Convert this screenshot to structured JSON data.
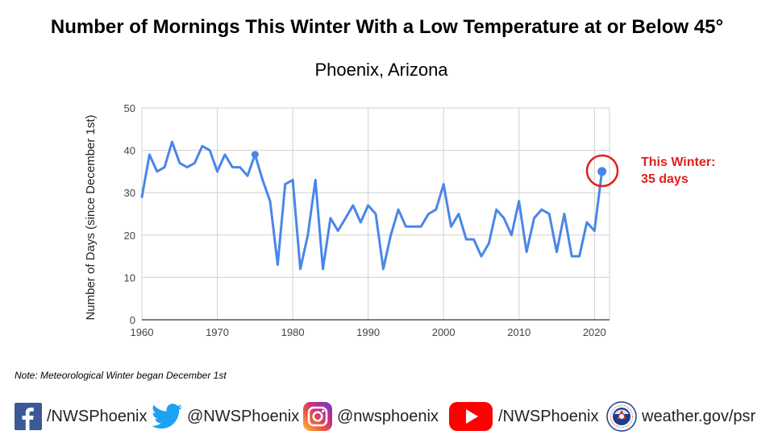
{
  "chart_data": {
    "type": "line",
    "title": "Number of Mornings This Winter With a Low Temperature at or Below 45°",
    "subtitle": "Phoenix, Arizona",
    "ylabel": "Number of Days (since December 1st)",
    "xlabel": "",
    "xlim": [
      1960,
      2022
    ],
    "ylim": [
      0,
      50
    ],
    "x_ticks": [
      "1960",
      "1970",
      "1980",
      "1990",
      "2000",
      "2010",
      "2020"
    ],
    "y_ticks": [
      "0",
      "10",
      "20",
      "30",
      "40",
      "50"
    ],
    "grid": true,
    "x": [
      1960,
      1961,
      1962,
      1963,
      1964,
      1965,
      1966,
      1967,
      1968,
      1969,
      1970,
      1971,
      1972,
      1973,
      1974,
      1975,
      1976,
      1977,
      1978,
      1979,
      1980,
      1981,
      1982,
      1983,
      1984,
      1985,
      1986,
      1987,
      1988,
      1989,
      1990,
      1991,
      1992,
      1993,
      1994,
      1995,
      1996,
      1997,
      1998,
      1999,
      2000,
      2001,
      2002,
      2003,
      2004,
      2005,
      2006,
      2007,
      2008,
      2009,
      2010,
      2011,
      2012,
      2013,
      2014,
      2015,
      2016,
      2017,
      2018,
      2019,
      2020,
      2021
    ],
    "series": [
      {
        "name": "",
        "color": "#4a86e8",
        "values": [
          29,
          39,
          35,
          36,
          42,
          37,
          36,
          37,
          41,
          40,
          35,
          39,
          36,
          36,
          34,
          39,
          33,
          28,
          13,
          32,
          33,
          12,
          20,
          33,
          12,
          24,
          21,
          24,
          27,
          23,
          27,
          25,
          12,
          20,
          26,
          22,
          22,
          22,
          25,
          26,
          32,
          22,
          25,
          19,
          19,
          15,
          18,
          26,
          24,
          20,
          28,
          16,
          24,
          26,
          25,
          16,
          25,
          15,
          15,
          23,
          21,
          35
        ]
      }
    ],
    "highlighted_points": [
      1975,
      2021
    ],
    "annotation": {
      "line1": "This Winter:",
      "line2": "35 days",
      "color": "#e0211a"
    }
  },
  "note": "Note: Meteorological Winter began December 1st",
  "footer": {
    "facebook": "/NWSPhoenix",
    "twitter": "@NWSPhoenix",
    "instagram": "@nwsphoenix",
    "youtube": "/NWSPhoenix",
    "website": "weather.gov/psr"
  },
  "colors": {
    "facebook": "#3b5998",
    "twitter": "#1da1f2",
    "youtube": "#ff0000",
    "nws_blue": "#1a3f8f"
  }
}
